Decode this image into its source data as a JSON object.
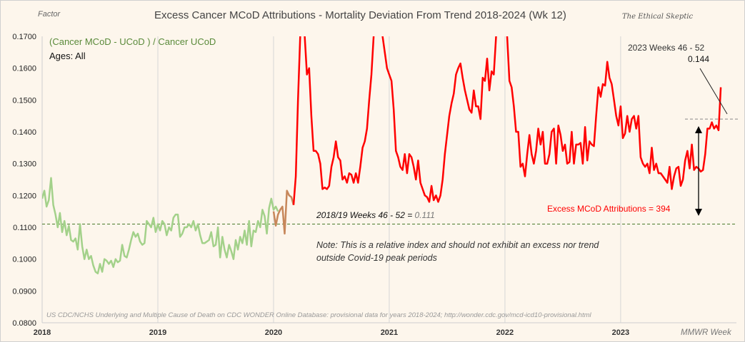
{
  "chart_data": {
    "type": "line",
    "title": "Excess Cancer  MCoD Attributions - Mortality Deviation  From Trend  2018-2024 (Wk 12)",
    "brand": "The Ethical Skeptic",
    "ylabel": "Factor",
    "xlabel": "MMWR Week",
    "ylim": [
      0.08,
      0.17
    ],
    "yticks": [
      "0.0800",
      "0.0900",
      "0.1000",
      "0.1100",
      "0.1200",
      "0.1300",
      "0.1400",
      "0.1500",
      "0.1600",
      "0.1700"
    ],
    "ytick_values": [
      0.08,
      0.09,
      0.1,
      0.11,
      0.12,
      0.13,
      0.14,
      0.15,
      0.16,
      0.17
    ],
    "xticks": [
      "2018",
      "2019",
      "2020",
      "2021",
      "2022",
      "2023"
    ],
    "grid": "vertical at year boundaries",
    "subtitle": "(Cancer MCoD - UCoD ) / Cancer UCoD",
    "ages_label": "Ages: All",
    "baseline": {
      "label": "2018/19  Weeks 46  - 52  =  ",
      "value_label": "0.111",
      "value": 0.111
    },
    "recent": {
      "label": "2023  Weeks 46  - 52",
      "value_label": "0.144",
      "value": 0.144
    },
    "excess_label": "Excess MCoD Attributions =    394",
    "note_line1": "Note: This is  a relative  index and should not exhibit an excess nor trend",
    "note_line2": "outside Covid-19 peak periods",
    "source": "US CDC/NCHS Underlying and Multiple Cause of Death on CDC WONDER Online Database: provisional data for years 2018-2024; http://wonder.cdc.gov/mcd-icd10-provisional.html",
    "colors": {
      "pre": "#a3d18a",
      "transition": "#c7875a",
      "covid": "#ff0000",
      "baseline": "#4a7a2a",
      "subtitle": "#5a8a3a"
    },
    "series": [
      {
        "name": "2018-2019 (pre-pandemic)",
        "start_week_index": 0,
        "values": [
          0.119,
          0.1215,
          0.1165,
          0.1185,
          0.1255,
          0.117,
          0.114,
          0.11,
          0.1145,
          0.1085,
          0.112,
          0.1075,
          0.1105,
          0.106,
          0.1055,
          0.1065,
          0.103,
          0.111,
          0.104,
          0.1,
          0.103,
          0.1,
          0.101,
          0.098,
          0.096,
          0.0955,
          0.0985,
          0.096,
          0.1,
          0.0995,
          0.0985,
          0.0995,
          0.0975,
          0.1,
          0.099,
          0.0995,
          0.1045,
          0.101,
          0.1005,
          0.103,
          0.106,
          0.1085,
          0.107,
          0.108,
          0.1055,
          0.1045,
          0.105,
          0.112,
          0.111,
          0.11,
          0.113,
          0.1085,
          0.111,
          0.109,
          0.112,
          0.111,
          0.1075,
          0.11,
          0.109,
          0.113,
          0.114,
          0.114,
          0.107,
          0.108,
          0.11,
          0.11,
          0.111,
          0.11,
          0.112,
          0.109,
          0.111,
          0.1075,
          0.105,
          0.105,
          0.1055,
          0.106,
          0.1085,
          0.104,
          0.1045,
          0.11,
          0.1005,
          0.107,
          0.103,
          0.1005,
          0.1045,
          0.1025,
          0.1,
          0.106,
          0.103,
          0.107,
          0.105,
          0.109,
          0.1045,
          0.112,
          0.104,
          0.109,
          0.1085,
          0.112,
          0.11,
          0.1155,
          0.1135,
          0.108,
          0.116,
          0.119,
          0.1155,
          0.1165,
          0.115
        ]
      },
      {
        "name": "2020 transition",
        "start_week_index": 104,
        "values": [
          0.115,
          0.1105,
          0.114,
          0.1155,
          0.1165,
          0.108,
          0.1215,
          0.12,
          0.1195,
          0.117
        ]
      },
      {
        "name": "2020-2024 (pandemic period)",
        "start_week_index": 113,
        "values": [
          0.117,
          0.126,
          0.15,
          0.17,
          0.18,
          0.17,
          0.158,
          0.16,
          0.145,
          0.134,
          0.134,
          0.133,
          0.13,
          0.122,
          0.1225,
          0.122,
          0.123,
          0.129,
          0.132,
          0.137,
          0.132,
          0.131,
          0.125,
          0.126,
          0.124,
          0.127,
          0.1265,
          0.124,
          0.127,
          0.124,
          0.129,
          0.135,
          0.137,
          0.141,
          0.15,
          0.158,
          0.17,
          0.18,
          0.185,
          0.18,
          0.17,
          0.165,
          0.16,
          0.158,
          0.156,
          0.147,
          0.134,
          0.132,
          0.129,
          0.128,
          0.133,
          0.127,
          0.133,
          0.132,
          0.129,
          0.125,
          0.131,
          0.124,
          0.122,
          0.12,
          0.1195,
          0.118,
          0.123,
          0.1185,
          0.12,
          0.118,
          0.12,
          0.125,
          0.133,
          0.139,
          0.145,
          0.149,
          0.152,
          0.158,
          0.16,
          0.1615,
          0.157,
          0.153,
          0.15,
          0.147,
          0.146,
          0.153,
          0.148,
          0.148,
          0.144,
          0.157,
          0.156,
          0.163,
          0.153,
          0.159,
          0.158,
          0.17,
          0.18,
          0.182,
          0.179,
          0.175,
          0.17,
          0.156,
          0.154,
          0.148,
          0.14,
          0.14,
          0.129,
          0.13,
          0.126,
          0.133,
          0.139,
          0.133,
          0.13,
          0.134,
          0.141,
          0.136,
          0.14,
          0.13,
          0.13,
          0.133,
          0.14,
          0.141,
          0.13,
          0.142,
          0.139,
          0.134,
          0.136,
          0.13,
          0.1305,
          0.14,
          0.13,
          0.136,
          0.136,
          0.1365,
          0.13,
          0.1415,
          0.131,
          0.137,
          0.136,
          0.1355,
          0.145,
          0.154,
          0.151,
          0.155,
          0.1545,
          0.162,
          0.157,
          0.155,
          0.15,
          0.145,
          0.142,
          0.148,
          0.138,
          0.1395,
          0.145,
          0.14,
          0.144,
          0.145,
          0.141,
          0.145,
          0.132,
          0.13,
          0.129,
          0.13,
          0.127,
          0.135,
          0.128,
          0.13,
          0.127,
          0.127,
          0.126,
          0.125,
          0.124,
          0.129,
          0.122,
          0.126,
          0.1285,
          0.129,
          0.123,
          0.125,
          0.131,
          0.134,
          0.1285,
          0.136,
          0.128,
          0.129,
          0.1285,
          0.1275,
          0.128,
          0.133,
          0.141,
          0.141,
          0.143,
          0.141,
          0.142,
          0.1405,
          0.154
        ]
      }
    ]
  }
}
